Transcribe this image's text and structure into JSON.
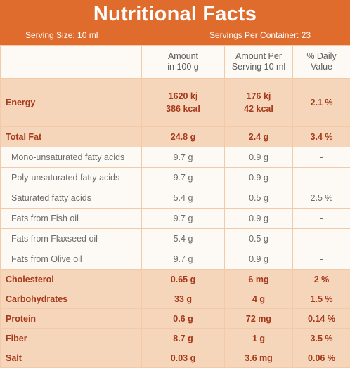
{
  "header": {
    "title": "Nutritional Facts",
    "serving_size": "Serving Size: 10 ml",
    "servings_per_container": "Servings Per Container: 23"
  },
  "columns": {
    "amount_100g_line1": "Amount",
    "amount_100g_line2": "in 100 g",
    "amount_serving_line1": "Amount Per",
    "amount_serving_line2": "Serving 10 ml",
    "daily_value_line1": "% Daily",
    "daily_value_line2": "Value"
  },
  "energy": {
    "label": "Energy",
    "per100_kj": "1620 kj",
    "per100_kcal": "386 kcal",
    "serving_kj": "176 kj",
    "serving_kcal": "42 kcal",
    "daily": "2.1 %"
  },
  "rows": [
    {
      "label": "Total Fat",
      "per100": "24.8 g",
      "serving": "2.4 g",
      "daily": "3.4 %"
    },
    {
      "label": "Mono-unsaturated fatty acids",
      "per100": "9.7 g",
      "serving": "0.9 g",
      "daily": "-"
    },
    {
      "label": "Poly-unsaturated fatty acids",
      "per100": "9.7 g",
      "serving": "0.9 g",
      "daily": "-"
    },
    {
      "label": "Saturated fatty acids",
      "per100": "5.4 g",
      "serving": "0.5 g",
      "daily": "2.5 %"
    },
    {
      "label": "Fats from Fish oil",
      "per100": "9.7 g",
      "serving": "0.9 g",
      "daily": "-"
    },
    {
      "label": "Fats from Flaxseed oil",
      "per100": "5.4 g",
      "serving": "0.5 g",
      "daily": "-"
    },
    {
      "label": "Fats from Olive oil",
      "per100": "9.7 g",
      "serving": "0.9 g",
      "daily": "-"
    },
    {
      "label": "Cholesterol",
      "per100": "0.65 g",
      "serving": "6 mg",
      "daily": "2 %"
    },
    {
      "label": "Carbohydrates",
      "per100": "33 g",
      "serving": "4 g",
      "daily": "1.5 %"
    },
    {
      "label": "Protein",
      "per100": "0.6 g",
      "serving": "72 mg",
      "daily": "0.14 %"
    },
    {
      "label": "Fiber",
      "per100": "8.7 g",
      "serving": "1 g",
      "daily": "3.5 %"
    },
    {
      "label": "Salt",
      "per100": "0.03 g",
      "serving": "3.6 mg",
      "daily": "0.06 %"
    }
  ],
  "colors": {
    "header_bg": "#df6b2d",
    "highlight_row_bg": "#f6d6bb",
    "highlight_text": "#a7381a",
    "page_bg": "#fbf3e9"
  }
}
